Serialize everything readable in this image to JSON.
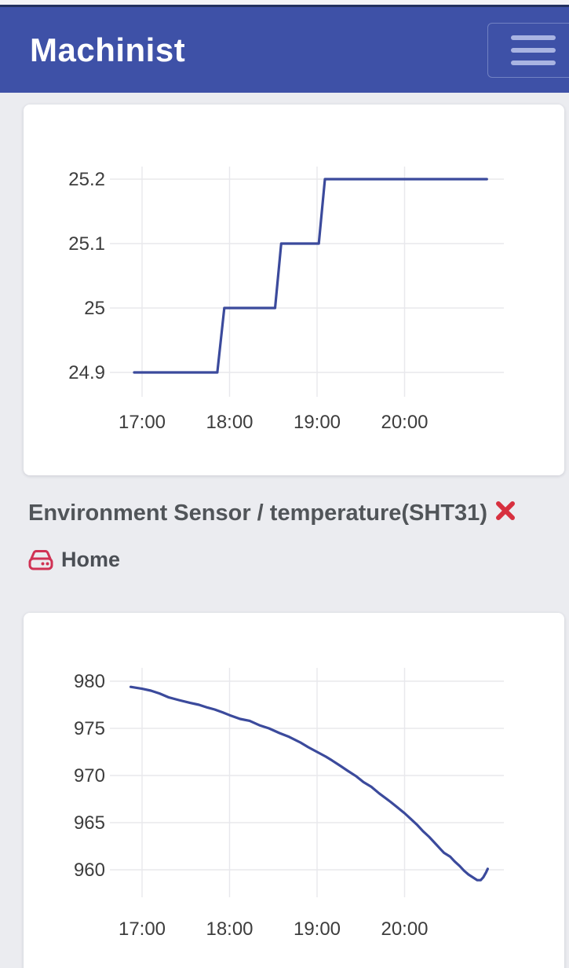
{
  "header": {
    "title": "Machinist",
    "menu_icon": "hamburger"
  },
  "sensor": {
    "title": "Environment Sensor / temperature(SHT31)",
    "close_icon": "close-x",
    "breadcrumb": {
      "icon": "hdd",
      "label": "Home"
    }
  },
  "colors": {
    "header_bg": "#3e51a7",
    "header_top_line": "#22305f",
    "hamburger_bar": "#a9b4e2",
    "page_bg": "#ebecf0",
    "card_bg": "#ffffff",
    "chart_line": "#3b4a9c",
    "grid_line": "#e8e8ec",
    "axis_text": "#3d3d3d",
    "title_text": "#515559",
    "close_x": "#d7303f",
    "home_icon": "#d03254"
  },
  "chart_data": [
    {
      "type": "line",
      "title": "",
      "xlabel": "",
      "ylabel": "",
      "grid": true,
      "legend": false,
      "line_color": "#3b4a9c",
      "grid_color": "#e8e8ec",
      "label_color": "#3d3d3d",
      "xlim": [
        16.9,
        20.95
      ],
      "ylim": [
        24.85,
        25.26
      ],
      "x_ticks": [
        {
          "value": 17,
          "label": "17:00"
        },
        {
          "value": 18,
          "label": "18:00"
        },
        {
          "value": 19,
          "label": "19:00"
        },
        {
          "value": 20,
          "label": "20:00"
        }
      ],
      "y_ticks": [
        {
          "value": 25.2,
          "label": "25.2"
        },
        {
          "value": 25.1,
          "label": "25.1"
        },
        {
          "value": 25.0,
          "label": "25"
        },
        {
          "value": 24.9,
          "label": "24.9"
        }
      ],
      "points": [
        [
          16.91,
          24.9
        ],
        [
          17.86,
          24.9
        ],
        [
          17.94,
          25.0
        ],
        [
          18.52,
          25.0
        ],
        [
          18.59,
          25.1
        ],
        [
          19.02,
          25.1
        ],
        [
          19.09,
          25.2
        ],
        [
          20.94,
          25.2
        ]
      ]
    },
    {
      "type": "line",
      "title": "",
      "xlabel": "",
      "ylabel": "",
      "grid": true,
      "legend": false,
      "line_color": "#3b4a9c",
      "grid_color": "#e8e8ec",
      "label_color": "#3d3d3d",
      "xlim": [
        16.87,
        20.95
      ],
      "ylim": [
        957,
        981
      ],
      "x_ticks": [
        {
          "value": 17,
          "label": "17:00"
        },
        {
          "value": 18,
          "label": "18:00"
        },
        {
          "value": 19,
          "label": "19:00"
        },
        {
          "value": 20,
          "label": "20:00"
        }
      ],
      "y_ticks": [
        {
          "value": 980,
          "label": "980"
        },
        {
          "value": 975,
          "label": "975"
        },
        {
          "value": 970,
          "label": "970"
        },
        {
          "value": 965,
          "label": "965"
        },
        {
          "value": 960,
          "label": "960"
        }
      ],
      "points": [
        [
          16.87,
          979.4
        ],
        [
          17.0,
          979.2
        ],
        [
          17.1,
          979.0
        ],
        [
          17.2,
          978.7
        ],
        [
          17.3,
          978.3
        ],
        [
          17.42,
          978.0
        ],
        [
          17.55,
          977.7
        ],
        [
          17.65,
          977.5
        ],
        [
          17.75,
          977.2
        ],
        [
          17.83,
          977.0
        ],
        [
          17.92,
          976.7
        ],
        [
          18.0,
          976.4
        ],
        [
          18.12,
          976.0
        ],
        [
          18.23,
          975.8
        ],
        [
          18.35,
          975.3
        ],
        [
          18.45,
          975.0
        ],
        [
          18.57,
          974.5
        ],
        [
          18.68,
          974.1
        ],
        [
          18.81,
          973.5
        ],
        [
          18.9,
          973.0
        ],
        [
          19.0,
          972.5
        ],
        [
          19.1,
          972.0
        ],
        [
          19.17,
          971.6
        ],
        [
          19.27,
          971.0
        ],
        [
          19.35,
          970.5
        ],
        [
          19.45,
          969.9
        ],
        [
          19.53,
          969.3
        ],
        [
          19.62,
          968.8
        ],
        [
          19.71,
          968.1
        ],
        [
          19.84,
          967.2
        ],
        [
          19.92,
          966.6
        ],
        [
          20.0,
          966.0
        ],
        [
          20.07,
          965.4
        ],
        [
          20.14,
          964.8
        ],
        [
          20.21,
          964.1
        ],
        [
          20.28,
          963.5
        ],
        [
          20.35,
          962.8
        ],
        [
          20.42,
          962.1
        ],
        [
          20.45,
          961.8
        ],
        [
          20.52,
          961.4
        ],
        [
          20.57,
          960.9
        ],
        [
          20.63,
          960.4
        ],
        [
          20.68,
          959.9
        ],
        [
          20.73,
          959.5
        ],
        [
          20.78,
          959.2
        ],
        [
          20.83,
          958.9
        ],
        [
          20.87,
          958.9
        ],
        [
          20.9,
          959.2
        ],
        [
          20.93,
          959.7
        ],
        [
          20.95,
          960.1
        ]
      ]
    }
  ]
}
